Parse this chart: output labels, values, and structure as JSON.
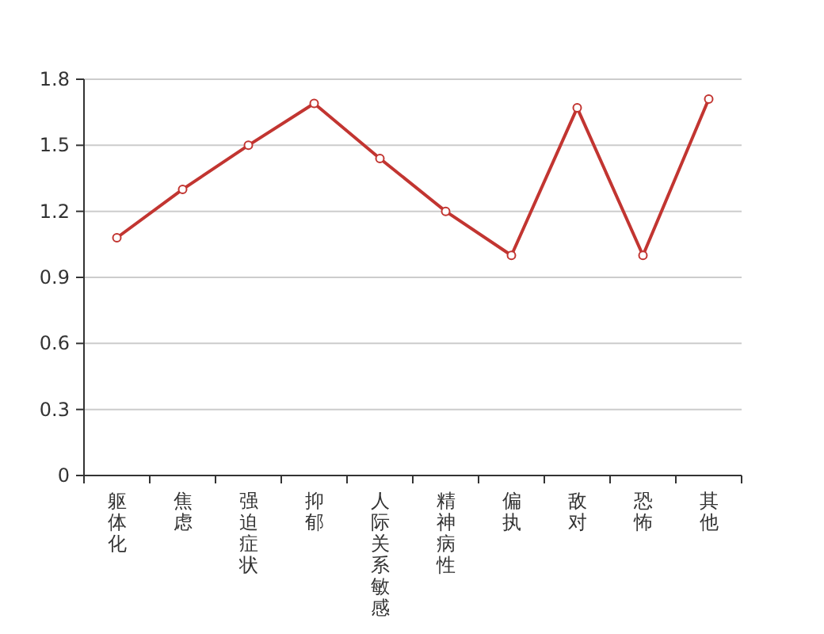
{
  "chart_data": {
    "type": "line",
    "categories": [
      "躯体化",
      "焦虑",
      "强迫症状",
      "抑郁",
      "人际关系敏感",
      "精神病性",
      "偏执",
      "敌对",
      "恐怖",
      "其他"
    ],
    "series": [
      {
        "color": "#c23531",
        "values": [
          1.08,
          1.3,
          1.5,
          1.69,
          1.44,
          1.2,
          1.0,
          1.67,
          1.0,
          1.71
        ]
      }
    ],
    "ylim": [
      0,
      1.8
    ],
    "yticks": [
      0,
      0.3,
      0.6,
      0.9,
      1.2,
      1.5,
      1.8
    ],
    "grid": "y",
    "marker": "circle",
    "line_style": "solid"
  }
}
